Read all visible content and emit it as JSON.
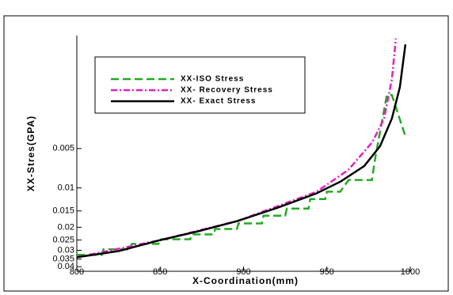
{
  "chart_data": {
    "type": "line",
    "x_label": "X-Coordination(mm)",
    "y_label": "XX-Stres(GPA)",
    "xlim": [
      800,
      1000
    ],
    "xticks": [
      800,
      850,
      900,
      950,
      1000
    ],
    "ylim": [
      0.000685,
      0.0434
    ],
    "y_log": true,
    "y_reversed": true,
    "yticks": [
      0.005,
      0.01,
      0.015,
      0.02,
      0.025,
      0.03,
      0.035,
      0.04
    ],
    "legend": "upper left",
    "series": [
      {
        "name": "XX-ISO Stress",
        "color": "#22aa22",
        "dash": "10,5",
        "x": [
          800,
          815,
          816,
          832,
          833,
          849,
          850,
          868,
          869,
          882,
          883,
          896,
          897,
          911,
          912,
          925,
          926,
          939,
          940,
          949,
          950,
          958,
          963,
          977,
          979,
          986,
          989,
          997
        ],
        "values": [
          0.0325,
          0.0325,
          0.0295,
          0.0295,
          0.0268,
          0.0268,
          0.0247,
          0.0247,
          0.0227,
          0.0227,
          0.0206,
          0.0206,
          0.0187,
          0.0187,
          0.0163,
          0.0163,
          0.0144,
          0.0144,
          0.0122,
          0.0122,
          0.0107,
          0.0107,
          0.0087,
          0.0087,
          0.0059,
          0.00195,
          0.00195,
          0.004
        ]
      },
      {
        "name": "XX- Recovery Stress",
        "color": "#e020c0",
        "dash": "8,3,2,3",
        "x": [
          800,
          848.9,
          896.4,
          943.9,
          962.9,
          977.2,
          984.3,
          989.0,
          991.4
        ],
        "values": [
          0.0339,
          0.0253,
          0.0179,
          0.0107,
          0.00727,
          0.00448,
          0.00295,
          0.00148,
          0.00072
        ]
      },
      {
        "name": "XX- Exact Stress",
        "color": "#000000",
        "dash": "",
        "x": [
          800,
          825.2,
          848.9,
          872.7,
          896.4,
          920.2,
          943.9,
          958.2,
          972.4,
          981.9,
          989.0,
          993.8,
          997.1
        ],
        "values": [
          0.0339,
          0.0304,
          0.0253,
          0.0215,
          0.0179,
          0.0142,
          0.011,
          0.00895,
          0.0068,
          0.0048,
          0.00295,
          0.0017,
          0.0008
        ]
      }
    ]
  }
}
